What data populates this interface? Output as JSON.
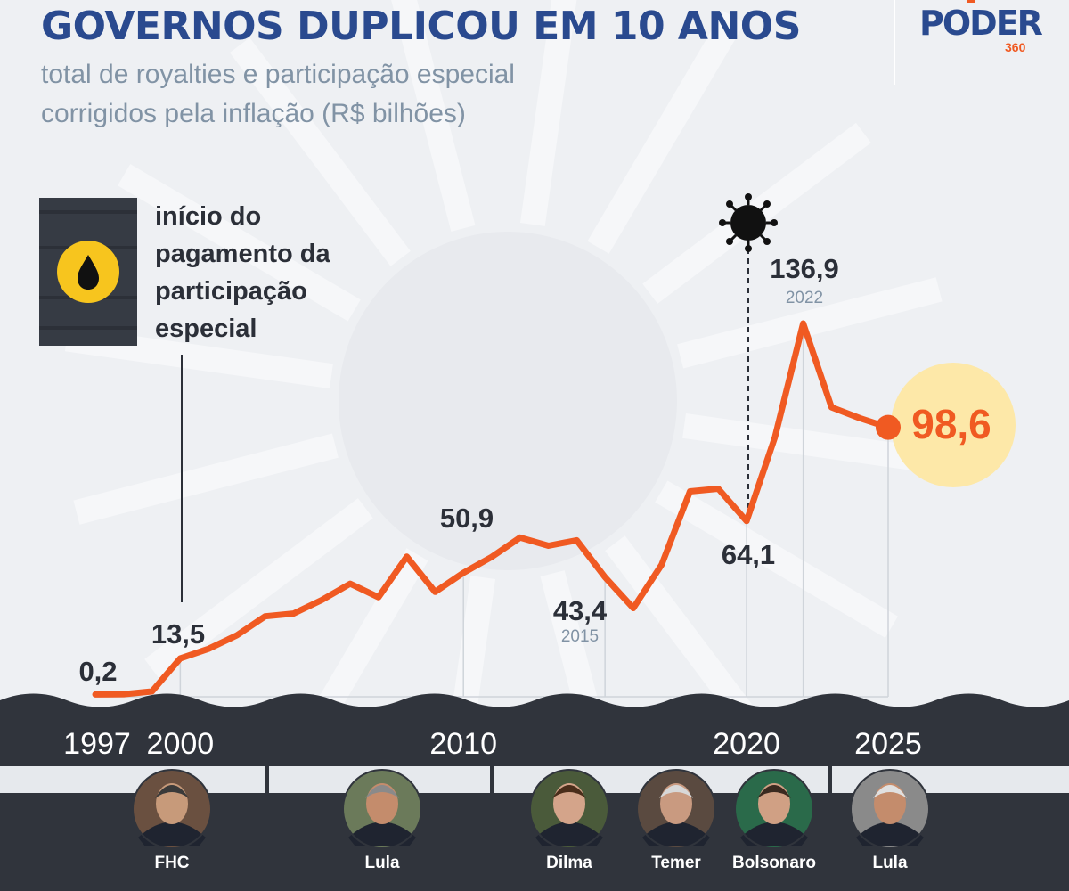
{
  "header": {
    "title": "GOVERNOS DUPLICOU EM 10 ANOS",
    "subtitle_line1": "total de royalties e participação especial",
    "subtitle_line2": "corrigidos pela inflação (R$ bilhões)"
  },
  "logo": {
    "name": "PODER",
    "sub": "360"
  },
  "annotation": {
    "line1": "início do",
    "line2": "pagamento da",
    "line3": "participação",
    "line4": "especial",
    "icon": "oil-drop-icon",
    "covid_icon": "virus-icon"
  },
  "colors": {
    "line": "#f05a22",
    "title": "#2a4a8f",
    "band": "#30343c",
    "highlight": "#fde8a8",
    "label": "#2b2f38",
    "year_label": "#8193a5"
  },
  "chart_data": {
    "type": "line",
    "title": "GOVERNOS DUPLICOU EM 10 ANOS",
    "subtitle": "total de royalties e participação especial corrigidos pela inflação (R$ bilhões)",
    "x": [
      1997,
      1998,
      1999,
      2000,
      2001,
      2002,
      2003,
      2004,
      2005,
      2006,
      2007,
      2008,
      2009,
      2010,
      2011,
      2012,
      2013,
      2014,
      2015,
      2016,
      2017,
      2018,
      2019,
      2020,
      2021,
      2022,
      2023,
      2024,
      2025
    ],
    "values": [
      0.2,
      0.3,
      1.3,
      13.5,
      17.0,
      22.0,
      29.0,
      30.0,
      35.0,
      41.0,
      36.0,
      51.0,
      38.0,
      45.0,
      50.9,
      58.0,
      55.0,
      57.0,
      43.4,
      32.0,
      48.0,
      75.0,
      76.0,
      64.1,
      95.0,
      136.9,
      106.0,
      102.0,
      98.6
    ],
    "xlim": [
      1997,
      2025
    ],
    "ylim": [
      0,
      140
    ],
    "x_tick_labels": [
      "1997",
      "2000",
      "2010",
      "2020",
      "2025"
    ],
    "grid": "vertical lines at 2000, 2010, 2015, 2020, 2022, 2025",
    "labels": [
      {
        "text": "0,2",
        "year": ""
      },
      {
        "text": "13,5",
        "year": ""
      },
      {
        "text": "50,9",
        "year": ""
      },
      {
        "text": "43,4",
        "year": "2015"
      },
      {
        "text": "64,1",
        "year": ""
      },
      {
        "text": "136,9",
        "year": "2022"
      },
      {
        "text": "98,6",
        "year": ""
      }
    ]
  },
  "presidents": [
    {
      "name": "FHC"
    },
    {
      "name": "Lula"
    },
    {
      "name": "Dilma"
    },
    {
      "name": "Temer"
    },
    {
      "name": "Bolsonaro"
    },
    {
      "name": "Lula"
    }
  ]
}
